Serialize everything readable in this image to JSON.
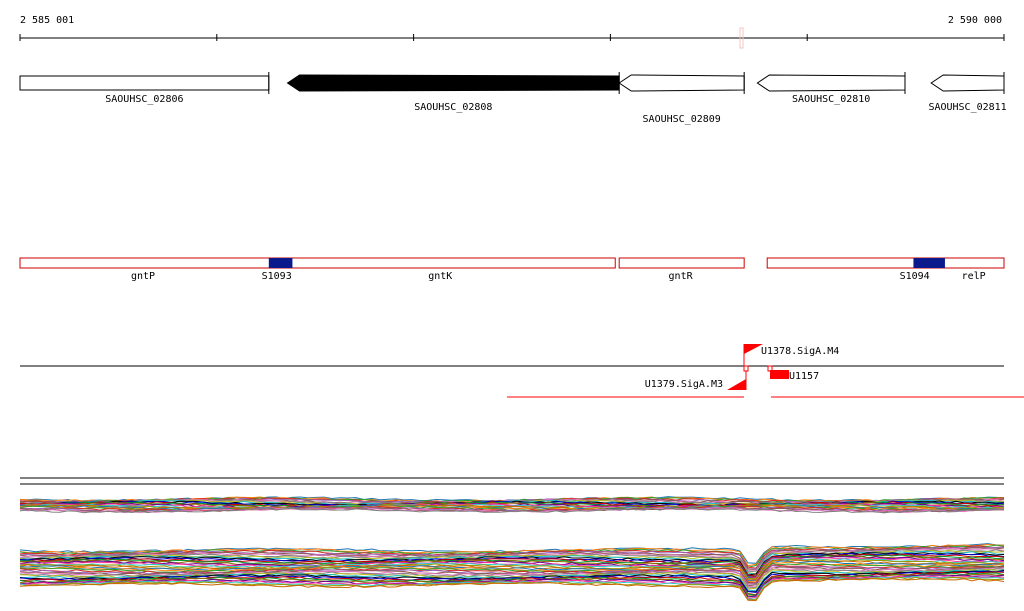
{
  "ruler": {
    "start_label": "2 585 001",
    "end_label": "2 590 000",
    "start": 2585001,
    "end": 2590000
  },
  "colors": {
    "line": "#000000",
    "gene_selected": "#000000",
    "gene_outline": "#000000",
    "region_outline": "#cc0000",
    "region_block": "#0a1a8c",
    "feature_red": "#ff0000",
    "marker_pink": "#f3c4c4"
  },
  "genes": [
    {
      "id": "SAOUHSC_02806",
      "label": "SAOUHSC_02806",
      "start": 2585001,
      "end": 2586265,
      "strand": "+",
      "selected": false
    },
    {
      "id": "SAOUHSC_02808",
      "label": "SAOUHSC_02808",
      "start": 2586360,
      "end": 2588045,
      "strand": "-",
      "selected": true
    },
    {
      "id": "SAOUHSC_02809",
      "label": "SAOUHSC_02809",
      "start": 2588045,
      "end": 2588680,
      "strand": "-",
      "selected": false
    },
    {
      "id": "SAOUHSC_02810",
      "label": "SAOUHSC_02810",
      "start": 2588747,
      "end": 2589497,
      "strand": "-",
      "selected": false
    },
    {
      "id": "SAOUHSC_02811",
      "label": "SAOUHSC_02811",
      "start": 2589630,
      "end": 2590000,
      "strand": "-",
      "selected": false
    }
  ],
  "regions": {
    "boxes": [
      {
        "start": 2585001,
        "end": 2588025
      },
      {
        "start": 2588045,
        "end": 2588680
      },
      {
        "start": 2588797,
        "end": 2590000
      }
    ],
    "blocks": [
      {
        "id": "S1093",
        "start": 2586265,
        "end": 2586385
      },
      {
        "id": "S1094",
        "start": 2589540,
        "end": 2589700
      }
    ],
    "labels": [
      {
        "text": "gntP",
        "pos": 2585626
      },
      {
        "text": "S1093",
        "pos": 2586305
      },
      {
        "text": "gntK",
        "pos": 2587136
      },
      {
        "text": "gntR",
        "pos": 2588357
      },
      {
        "text": "S1094",
        "pos": 2589546
      },
      {
        "text": "relP",
        "pos": 2589846
      }
    ]
  },
  "features": [
    {
      "id": "U1378.SigA.M4",
      "label": "U1378.SigA.M4",
      "pos": 2588627,
      "strand": "+"
    },
    {
      "id": "U1379.SigA.M3",
      "label": "U1379.SigA.M3",
      "pos": 2588627,
      "strand": "-"
    },
    {
      "id": "U1157",
      "label": "U1157",
      "start": 2588767,
      "end": 2588867
    }
  ]
}
